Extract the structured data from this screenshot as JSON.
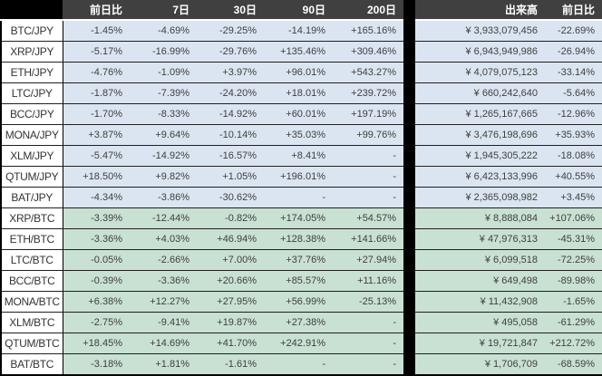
{
  "chart_data": {
    "type": "table",
    "columns": [
      "",
      "前日比",
      "7日",
      "30日",
      "90日",
      "200日",
      "出来高",
      "前日比"
    ],
    "sections": [
      {
        "quote": "JPY",
        "rows": [
          {
            "pair": "BTC/JPY",
            "change_1d": "-1.45%",
            "change_7d": "-4.69%",
            "change_30d": "-29.25%",
            "change_90d": "-14.19%",
            "change_200d": "+165.16%",
            "volume": "¥ 3,933,079,456",
            "volume_change_1d": "-22.69%"
          },
          {
            "pair": "XRP/JPY",
            "change_1d": "-5.17%",
            "change_7d": "-16.99%",
            "change_30d": "-29.76%",
            "change_90d": "+135.46%",
            "change_200d": "+309.46%",
            "volume": "¥ 6,943,949,986",
            "volume_change_1d": "-26.94%"
          },
          {
            "pair": "ETH/JPY",
            "change_1d": "-4.76%",
            "change_7d": "-1.09%",
            "change_30d": "+3.97%",
            "change_90d": "+96.01%",
            "change_200d": "+543.27%",
            "volume": "¥ 4,079,075,123",
            "volume_change_1d": "-33.14%"
          },
          {
            "pair": "LTC/JPY",
            "change_1d": "-1.87%",
            "change_7d": "-7.39%",
            "change_30d": "-24.20%",
            "change_90d": "+18.01%",
            "change_200d": "+239.72%",
            "volume": "¥ 660,242,640",
            "volume_change_1d": "-5.64%"
          },
          {
            "pair": "BCC/JPY",
            "change_1d": "-1.70%",
            "change_7d": "-8.33%",
            "change_30d": "-14.92%",
            "change_90d": "+60.01%",
            "change_200d": "+197.19%",
            "volume": "¥ 1,265,167,665",
            "volume_change_1d": "-12.96%"
          },
          {
            "pair": "MONA/JPY",
            "change_1d": "+3.87%",
            "change_7d": "+9.64%",
            "change_30d": "-10.14%",
            "change_90d": "+35.03%",
            "change_200d": "+99.76%",
            "volume": "¥ 3,476,198,696",
            "volume_change_1d": "+35.93%"
          },
          {
            "pair": "XLM/JPY",
            "change_1d": "-5.47%",
            "change_7d": "-14.92%",
            "change_30d": "-16.57%",
            "change_90d": "+8.41%",
            "change_200d": "-",
            "volume": "¥ 1,945,305,222",
            "volume_change_1d": "-18.08%"
          },
          {
            "pair": "QTUM/JPY",
            "change_1d": "+18.50%",
            "change_7d": "+9.82%",
            "change_30d": "+1.05%",
            "change_90d": "+196.01%",
            "change_200d": "-",
            "volume": "¥ 6,423,133,996",
            "volume_change_1d": "+40.55%"
          },
          {
            "pair": "BAT/JPY",
            "change_1d": "-4.34%",
            "change_7d": "-3.86%",
            "change_30d": "-30.62%",
            "change_90d": "-",
            "change_200d": "-",
            "volume": "¥ 2,365,098,982",
            "volume_change_1d": "+3.45%"
          }
        ]
      },
      {
        "quote": "BTC",
        "rows": [
          {
            "pair": "XRP/BTC",
            "change_1d": "-3.39%",
            "change_7d": "-12.44%",
            "change_30d": "-0.82%",
            "change_90d": "+174.05%",
            "change_200d": "+54.57%",
            "volume": "¥ 8,888,084",
            "volume_change_1d": "+107.06%"
          },
          {
            "pair": "ETH/BTC",
            "change_1d": "-3.36%",
            "change_7d": "+4.03%",
            "change_30d": "+46.94%",
            "change_90d": "+128.38%",
            "change_200d": "+141.66%",
            "volume": "¥ 47,976,313",
            "volume_change_1d": "-45.31%"
          },
          {
            "pair": "LTC/BTC",
            "change_1d": "-0.05%",
            "change_7d": "-2.66%",
            "change_30d": "+7.00%",
            "change_90d": "+37.76%",
            "change_200d": "+27.94%",
            "volume": "¥ 6,099,518",
            "volume_change_1d": "-72.25%"
          },
          {
            "pair": "BCC/BTC",
            "change_1d": "-0.39%",
            "change_7d": "-3.36%",
            "change_30d": "+20.66%",
            "change_90d": "+85.57%",
            "change_200d": "+11.16%",
            "volume": "¥ 649,498",
            "volume_change_1d": "-89.98%"
          },
          {
            "pair": "MONA/BTC",
            "change_1d": "+6.38%",
            "change_7d": "+12.27%",
            "change_30d": "+27.95%",
            "change_90d": "+56.99%",
            "change_200d": "-25.13%",
            "volume": "¥ 11,432,908",
            "volume_change_1d": "-1.65%"
          },
          {
            "pair": "XLM/BTC",
            "change_1d": "-2.75%",
            "change_7d": "-9.41%",
            "change_30d": "+19.87%",
            "change_90d": "+27.38%",
            "change_200d": "-",
            "volume": "¥ 495,058",
            "volume_change_1d": "-61.29%"
          },
          {
            "pair": "QTUM/BTC",
            "change_1d": "+18.45%",
            "change_7d": "+14.69%",
            "change_30d": "+41.70%",
            "change_90d": "+242.91%",
            "change_200d": "-",
            "volume": "¥ 19,721,847",
            "volume_change_1d": "+212.72%"
          },
          {
            "pair": "BAT/BTC",
            "change_1d": "-3.18%",
            "change_7d": "+1.81%",
            "change_30d": "-1.61%",
            "change_90d": "-",
            "change_200d": "-",
            "volume": "¥ 1,706,709",
            "volume_change_1d": "-68.59%"
          }
        ]
      }
    ]
  },
  "colors": {
    "header_bg": "#404040",
    "corner_bg": "#000000",
    "jpy_row_bg": "#dbe5f1",
    "btc_row_bg": "#c9e1d2",
    "header_text": "#ffffff",
    "cell_text": "#3f3f3f",
    "frame": "#000000"
  }
}
